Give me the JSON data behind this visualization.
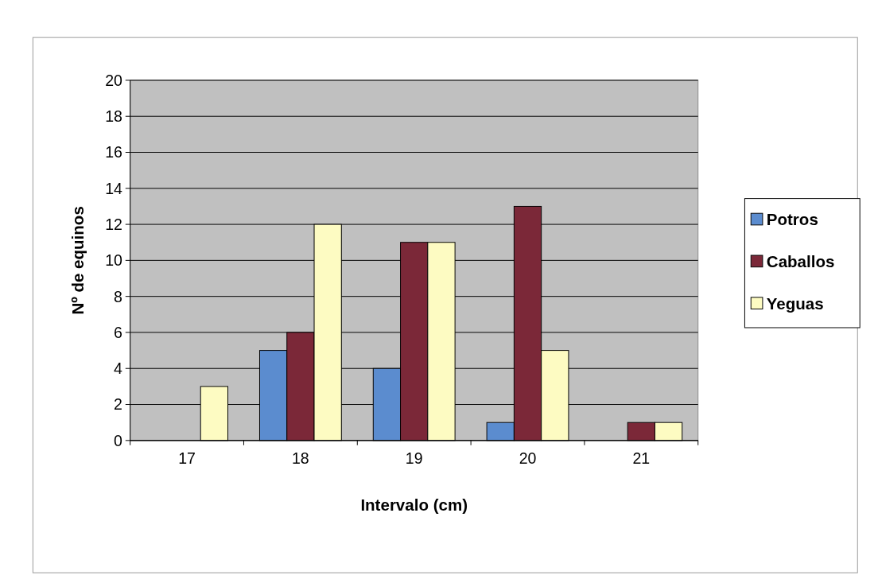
{
  "chart_data": {
    "type": "bar",
    "xlabel": "Intervalo (cm)",
    "ylabel": "Nº de equinos",
    "categories": [
      "17",
      "18",
      "19",
      "20",
      "21"
    ],
    "series": [
      {
        "name": "Potros",
        "color": "#5b8ccf",
        "values": [
          0,
          5,
          4,
          1,
          0
        ]
      },
      {
        "name": "Caballos",
        "color": "#7b2838",
        "values": [
          0,
          6,
          11,
          13,
          1
        ]
      },
      {
        "name": "Yeguas",
        "color": "#fdfbc2",
        "values": [
          3,
          12,
          11,
          5,
          1
        ]
      }
    ],
    "ylim": [
      0,
      20
    ],
    "yticks": [
      0,
      2,
      4,
      6,
      8,
      10,
      12,
      14,
      16,
      18,
      20
    ],
    "grid": "y",
    "legend": "right"
  }
}
